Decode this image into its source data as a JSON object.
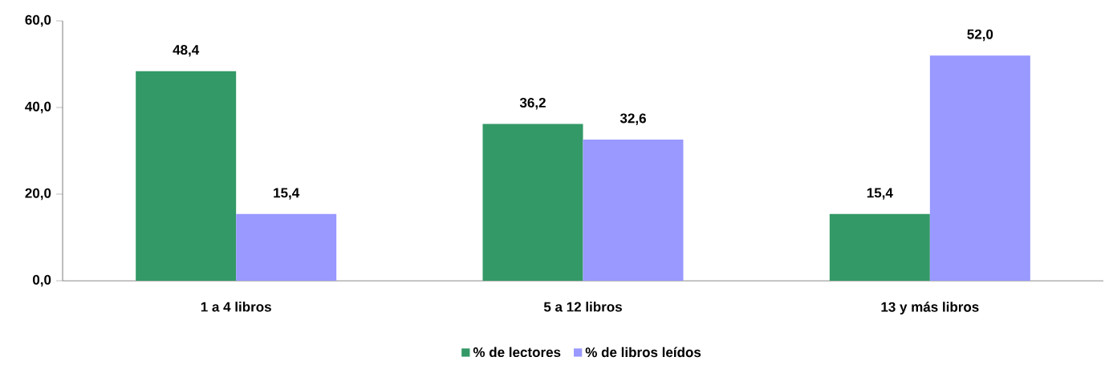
{
  "chart_data": {
    "type": "bar",
    "categories": [
      "1 a 4 libros",
      "5 a 12 libros",
      "13 y más libros"
    ],
    "series": [
      {
        "name": "% de lectores",
        "color": "#339966",
        "values": [
          48.4,
          36.2,
          15.4
        ],
        "value_labels": [
          "48,4",
          "36,2",
          "15,4"
        ]
      },
      {
        "name": "% de libros leídos",
        "color": "#9999ff",
        "values": [
          15.4,
          32.6,
          52.0
        ],
        "value_labels": [
          "15,4",
          "32,6",
          "52,0"
        ]
      }
    ],
    "ylim": [
      0,
      60
    ],
    "yticks": [
      {
        "value": 0,
        "label": "0,0"
      },
      {
        "value": 20,
        "label": "20,0"
      },
      {
        "value": 40,
        "label": "40,0"
      },
      {
        "value": 60,
        "label": "60,0"
      }
    ],
    "legend": "bottom"
  }
}
